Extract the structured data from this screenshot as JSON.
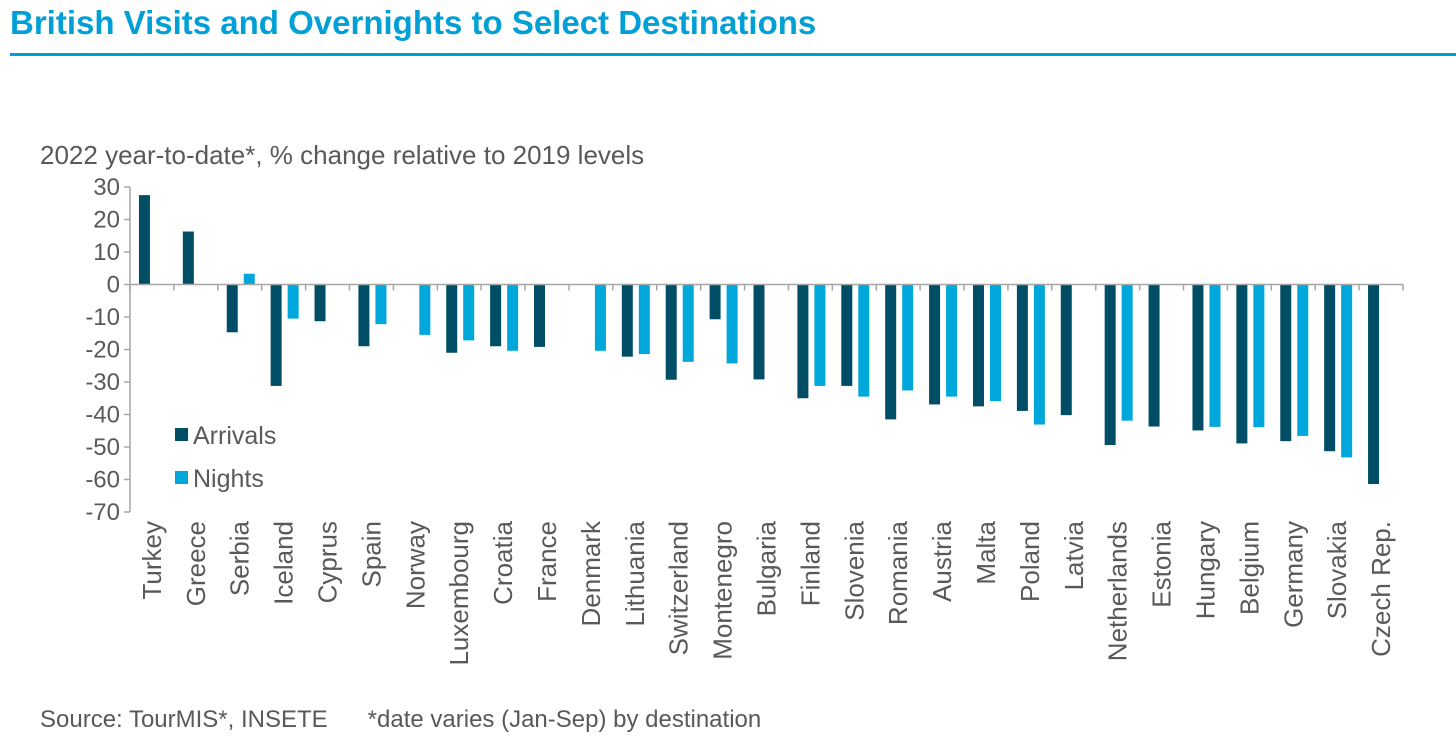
{
  "header": {
    "title": "British Visits and Overnights to Select Destinations"
  },
  "footer": {
    "source": "Source: TourMIS*, INSETE",
    "note": "*date varies (Jan-Sep) by destination"
  },
  "colors": {
    "title": "#00a0d6",
    "arrivals": "#004e66",
    "nights": "#00a7db",
    "axis": "#a6a6a6",
    "text": "#595959"
  },
  "chart_data": {
    "type": "bar",
    "title": "British Visits and Overnights to Select Destinations",
    "subtitle": "2022 year-to-date*, % change relative to 2019 levels",
    "ylim": [
      -70,
      30
    ],
    "yticks": [
      30,
      20,
      10,
      0,
      -10,
      -20,
      -30,
      -40,
      -50,
      -60,
      -70
    ],
    "grid": false,
    "legend_position": "bottom-left",
    "categories": [
      "Turkey",
      "Greece",
      "Serbia",
      "Iceland",
      "Cyprus",
      "Spain",
      "Norway",
      "Luxembourg",
      "Croatia",
      "France",
      "Denmark",
      "Lithuania",
      "Switzerland",
      "Montenegro",
      "Bulgaria",
      "Finland",
      "Slovenia",
      "Romania",
      "Austria",
      "Malta",
      "Poland",
      "Latvia",
      "Netherlands",
      "Estonia",
      "Hungary",
      "Belgium",
      "Germany",
      "Slovakia",
      "Czech Rep."
    ],
    "series": [
      {
        "name": "Arrivals",
        "color": "#004e66",
        "values": [
          27.5,
          16.3,
          -14.7,
          -31.2,
          -11.3,
          -19.0,
          null,
          -21.0,
          -19.0,
          -19.2,
          null,
          -22.2,
          -29.3,
          -10.7,
          -29.2,
          -35.0,
          -31.2,
          -41.5,
          -36.9,
          -37.5,
          -38.9,
          -40.2,
          -49.4,
          -43.7,
          -44.9,
          -48.9,
          -48.2,
          -51.3,
          -61.4
        ]
      },
      {
        "name": "Nights",
        "color": "#00a7db",
        "values": [
          null,
          null,
          3.3,
          -10.5,
          null,
          -12.2,
          -15.5,
          -17.2,
          -20.4,
          null,
          -20.4,
          -21.4,
          -23.8,
          -24.3,
          null,
          -31.2,
          -34.5,
          -32.6,
          -34.5,
          -35.9,
          -43.1,
          null,
          -41.9,
          null,
          -43.8,
          -43.9,
          -46.6,
          -53.2,
          null
        ]
      }
    ]
  }
}
